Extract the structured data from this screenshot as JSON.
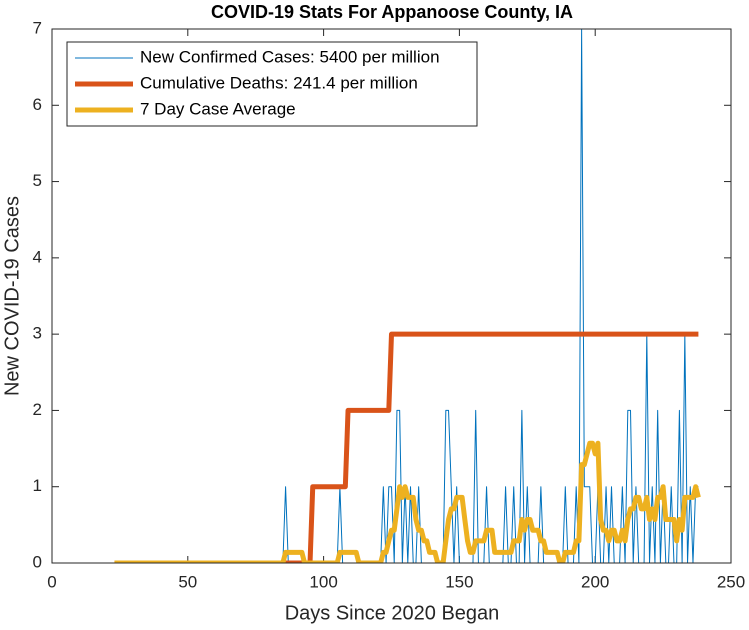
{
  "chart_data": {
    "type": "line",
    "title": "COVID-19 Stats For Appanoose County, IA",
    "xlabel": "Days Since 2020 Began",
    "ylabel": "New COVID-19 Cases",
    "xlim": [
      0,
      250
    ],
    "xticks": [
      0,
      50,
      100,
      150,
      200,
      250
    ],
    "ylim": [
      0,
      7
    ],
    "yticks": [
      0,
      1,
      2,
      3,
      4,
      5,
      6,
      7
    ],
    "grid": false,
    "legend": "northwest",
    "x": [
      23,
      24,
      25,
      26,
      27,
      28,
      29,
      30,
      31,
      32,
      33,
      34,
      35,
      36,
      37,
      38,
      39,
      40,
      41,
      42,
      43,
      44,
      45,
      46,
      47,
      48,
      49,
      50,
      51,
      52,
      53,
      54,
      55,
      56,
      57,
      58,
      59,
      60,
      61,
      62,
      63,
      64,
      65,
      66,
      67,
      68,
      69,
      70,
      71,
      72,
      73,
      74,
      75,
      76,
      77,
      78,
      79,
      80,
      81,
      82,
      83,
      84,
      85,
      86,
      87,
      88,
      89,
      90,
      91,
      92,
      93,
      94,
      95,
      96,
      97,
      98,
      99,
      100,
      101,
      102,
      103,
      104,
      105,
      106,
      107,
      108,
      109,
      110,
      111,
      112,
      113,
      114,
      115,
      116,
      117,
      118,
      119,
      120,
      121,
      122,
      123,
      124,
      125,
      126,
      127,
      128,
      129,
      130,
      131,
      132,
      133,
      134,
      135,
      136,
      137,
      138,
      139,
      140,
      141,
      142,
      143,
      144,
      145,
      146,
      147,
      148,
      149,
      150,
      151,
      152,
      153,
      154,
      155,
      156,
      157,
      158,
      159,
      160,
      161,
      162,
      163,
      164,
      165,
      166,
      167,
      168,
      169,
      170,
      171,
      172,
      173,
      174,
      175,
      176,
      177,
      178,
      179,
      180,
      181,
      182,
      183,
      184,
      185,
      186,
      187,
      188,
      189,
      190,
      191,
      192,
      193,
      194,
      195,
      196,
      197,
      198,
      199,
      200,
      201,
      202,
      203,
      204,
      205,
      206,
      207,
      208,
      209,
      210,
      211,
      212,
      213,
      214,
      215,
      216,
      217,
      218,
      219,
      220,
      221,
      222,
      223,
      224,
      225,
      226,
      227,
      228,
      229,
      230,
      231,
      232,
      233,
      234,
      235,
      236,
      237,
      238
    ],
    "series": [
      {
        "name": "New Confirmed Cases: 5400 per million",
        "color": "#0072bd",
        "width": 1,
        "values": [
          0,
          0,
          0,
          0,
          0,
          0,
          0,
          0,
          0,
          0,
          0,
          0,
          0,
          0,
          0,
          0,
          0,
          0,
          0,
          0,
          0,
          0,
          0,
          0,
          0,
          0,
          0,
          0,
          0,
          0,
          0,
          0,
          0,
          0,
          0,
          0,
          0,
          0,
          0,
          0,
          0,
          0,
          0,
          0,
          0,
          0,
          0,
          0,
          0,
          0,
          0,
          0,
          0,
          0,
          0,
          0,
          0,
          0,
          0,
          0,
          0,
          0,
          0,
          1,
          0,
          0,
          0,
          0,
          0,
          0,
          0,
          0,
          0,
          0,
          0,
          0,
          0,
          0,
          0,
          0,
          0,
          0,
          0,
          1,
          0,
          0,
          0,
          0,
          0,
          0,
          0,
          0,
          0,
          0,
          0,
          0,
          0,
          0,
          0,
          1,
          0,
          1,
          1,
          0,
          2,
          2,
          0,
          1,
          0,
          1,
          0,
          0,
          1,
          0,
          0,
          0,
          0,
          0,
          0,
          0,
          0,
          0,
          2,
          2,
          1,
          0,
          1,
          0,
          0,
          0,
          0,
          0,
          0,
          2,
          0,
          0,
          0,
          1,
          0,
          0,
          0,
          0,
          0,
          0,
          1,
          0,
          0,
          1,
          0,
          0,
          2,
          0,
          1,
          0,
          0,
          0,
          0,
          1,
          0,
          0,
          0,
          0,
          0,
          0,
          0,
          0,
          1,
          0,
          0,
          0,
          1,
          0,
          7,
          1,
          1,
          1,
          0,
          0,
          1,
          0,
          0,
          1,
          0,
          1,
          0,
          0,
          0,
          1,
          0,
          2,
          2,
          0,
          1,
          0,
          0,
          0,
          3,
          0,
          1,
          0,
          2,
          0,
          1,
          0,
          0,
          1,
          0,
          0,
          2,
          0,
          3,
          0,
          1,
          0,
          1,
          1
        ]
      },
      {
        "name": "Cumulative Deaths: 241.4 per million",
        "color": "#d95319",
        "width": 5,
        "values": [
          0,
          0,
          0,
          0,
          0,
          0,
          0,
          0,
          0,
          0,
          0,
          0,
          0,
          0,
          0,
          0,
          0,
          0,
          0,
          0,
          0,
          0,
          0,
          0,
          0,
          0,
          0,
          0,
          0,
          0,
          0,
          0,
          0,
          0,
          0,
          0,
          0,
          0,
          0,
          0,
          0,
          0,
          0,
          0,
          0,
          0,
          0,
          0,
          0,
          0,
          0,
          0,
          0,
          0,
          0,
          0,
          0,
          0,
          0,
          0,
          0,
          0,
          0,
          0,
          0,
          0,
          0,
          0,
          0,
          0,
          0,
          0,
          0,
          1,
          1,
          1,
          1,
          1,
          1,
          1,
          1,
          1,
          1,
          1,
          1,
          1,
          2,
          2,
          2,
          2,
          2,
          2,
          2,
          2,
          2,
          2,
          2,
          2,
          2,
          2,
          2,
          2,
          3,
          3,
          3,
          3,
          3,
          3,
          3,
          3,
          3,
          3,
          3,
          3,
          3,
          3,
          3,
          3,
          3,
          3,
          3,
          3,
          3,
          3,
          3,
          3,
          3,
          3,
          3,
          3,
          3,
          3,
          3,
          3,
          3,
          3,
          3,
          3,
          3,
          3,
          3,
          3,
          3,
          3,
          3,
          3,
          3,
          3,
          3,
          3,
          3,
          3,
          3,
          3,
          3,
          3,
          3,
          3,
          3,
          3,
          3,
          3,
          3,
          3,
          3,
          3,
          3,
          3,
          3,
          3,
          3,
          3,
          3,
          3,
          3,
          3,
          3,
          3,
          3,
          3,
          3,
          3,
          3,
          3,
          3,
          3,
          3,
          3,
          3,
          3,
          3,
          3,
          3,
          3,
          3,
          3,
          3,
          3,
          3,
          3,
          3,
          3,
          3,
          3,
          3,
          3,
          3,
          3,
          3,
          3,
          3,
          3,
          3,
          3,
          3,
          3
        ]
      },
      {
        "name": "7 Day Case Average",
        "color": "#edb120",
        "width": 5,
        "values": [
          0,
          0,
          0,
          0,
          0,
          0,
          0,
          0,
          0,
          0,
          0,
          0,
          0,
          0,
          0,
          0,
          0,
          0,
          0,
          0,
          0,
          0,
          0,
          0,
          0,
          0,
          0,
          0,
          0,
          0,
          0,
          0,
          0,
          0,
          0,
          0,
          0,
          0,
          0,
          0,
          0,
          0,
          0,
          0,
          0,
          0,
          0,
          0,
          0,
          0,
          0,
          0,
          0,
          0,
          0,
          0,
          0,
          0,
          0,
          0,
          0,
          0,
          0,
          0.14,
          0.14,
          0.14,
          0.14,
          0.14,
          0.14,
          0.14,
          0,
          0,
          0,
          0,
          0,
          0,
          0,
          0,
          0,
          0,
          0,
          0,
          0,
          0.14,
          0.14,
          0.14,
          0.14,
          0.14,
          0.14,
          0.14,
          0,
          0,
          0,
          0,
          0,
          0,
          0,
          0,
          0,
          0.14,
          0.14,
          0.29,
          0.43,
          0.43,
          0.71,
          1,
          0.86,
          1,
          0.86,
          0.86,
          0.86,
          0.57,
          0.43,
          0.43,
          0.29,
          0.29,
          0.14,
          0.14,
          0.14,
          0,
          0,
          0,
          0.29,
          0.57,
          0.71,
          0.71,
          0.86,
          0.86,
          0.86,
          0.57,
          0.29,
          0.14,
          0.14,
          0.29,
          0.29,
          0.29,
          0.29,
          0.43,
          0.43,
          0.43,
          0.14,
          0.14,
          0.14,
          0.14,
          0.14,
          0.14,
          0.14,
          0.29,
          0.29,
          0.29,
          0.57,
          0.43,
          0.57,
          0.57,
          0.43,
          0.43,
          0.43,
          0.29,
          0.29,
          0.14,
          0.14,
          0.14,
          0.14,
          0.14,
          0,
          0,
          0.14,
          0.14,
          0.14,
          0.14,
          0.29,
          0.29,
          1.29,
          1.29,
          1.43,
          1.57,
          1.57,
          1.43,
          1.57,
          0.57,
          0.43,
          0.43,
          0.29,
          0.43,
          0.43,
          0.29,
          0.29,
          0.43,
          0.29,
          0.57,
          0.71,
          0.71,
          0.86,
          0.86,
          0.71,
          0.71,
          0.86,
          0.57,
          0.71,
          0.57,
          0.86,
          0.86,
          1,
          0.57,
          0.57,
          0.57,
          0.57,
          0.29,
          0.57,
          0.43,
          0.86,
          0.86,
          0.86,
          0.86,
          1,
          0.86
        ]
      }
    ]
  }
}
